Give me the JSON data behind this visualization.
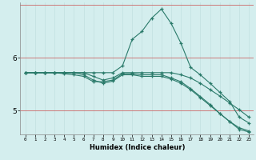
{
  "xlabel": "Humidex (Indice chaleur)",
  "bg_color": "#d4eeee",
  "grid_color_minor": "#c0e0e0",
  "grid_color_red": "#cc6666",
  "line_color": "#2a7a6a",
  "x_min": -0.5,
  "x_max": 23.5,
  "y_min": 4.55,
  "y_max": 7.05,
  "yticks": [
    5,
    6
  ],
  "xticks": [
    0,
    1,
    2,
    3,
    4,
    5,
    6,
    7,
    8,
    9,
    10,
    11,
    12,
    13,
    14,
    15,
    16,
    17,
    18,
    19,
    20,
    21,
    22,
    23
  ],
  "series": [
    {
      "x": [
        0,
        1,
        2,
        3,
        4,
        5,
        6,
        7,
        8,
        9,
        10,
        11,
        12,
        13,
        14,
        15,
        16,
        17,
        18,
        19,
        20,
        21,
        22,
        23
      ],
      "y": [
        5.72,
        5.72,
        5.72,
        5.72,
        5.72,
        5.72,
        5.72,
        5.72,
        5.72,
        5.72,
        5.85,
        6.35,
        6.5,
        6.75,
        6.92,
        6.65,
        6.28,
        5.82,
        5.68,
        5.52,
        5.35,
        5.18,
        4.88,
        4.77
      ]
    },
    {
      "x": [
        0,
        1,
        2,
        3,
        4,
        5,
        6,
        7,
        8,
        9,
        10,
        11,
        12,
        13,
        14,
        15,
        16,
        17,
        18,
        19,
        20,
        21,
        22,
        23
      ],
      "y": [
        5.72,
        5.72,
        5.72,
        5.72,
        5.72,
        5.72,
        5.72,
        5.65,
        5.58,
        5.62,
        5.72,
        5.72,
        5.72,
        5.72,
        5.72,
        5.72,
        5.68,
        5.62,
        5.52,
        5.4,
        5.28,
        5.15,
        5.02,
        4.88
      ]
    },
    {
      "x": [
        0,
        1,
        2,
        3,
        4,
        5,
        6,
        7,
        8,
        9,
        10,
        11,
        12,
        13,
        14,
        15,
        16,
        17,
        18,
        19,
        20,
        21,
        22,
        23
      ],
      "y": [
        5.72,
        5.72,
        5.72,
        5.72,
        5.72,
        5.72,
        5.68,
        5.58,
        5.52,
        5.56,
        5.68,
        5.68,
        5.65,
        5.65,
        5.65,
        5.6,
        5.52,
        5.4,
        5.25,
        5.1,
        4.95,
        4.8,
        4.68,
        4.62
      ]
    },
    {
      "x": [
        0,
        1,
        2,
        3,
        4,
        5,
        6,
        7,
        8,
        9,
        10,
        11,
        12,
        13,
        14,
        15,
        16,
        17,
        18,
        19,
        20,
        21,
        22,
        23
      ],
      "y": [
        5.72,
        5.72,
        5.72,
        5.72,
        5.7,
        5.68,
        5.65,
        5.55,
        5.55,
        5.58,
        5.7,
        5.7,
        5.68,
        5.68,
        5.68,
        5.62,
        5.55,
        5.42,
        5.27,
        5.12,
        4.95,
        4.8,
        4.65,
        4.6
      ]
    }
  ]
}
